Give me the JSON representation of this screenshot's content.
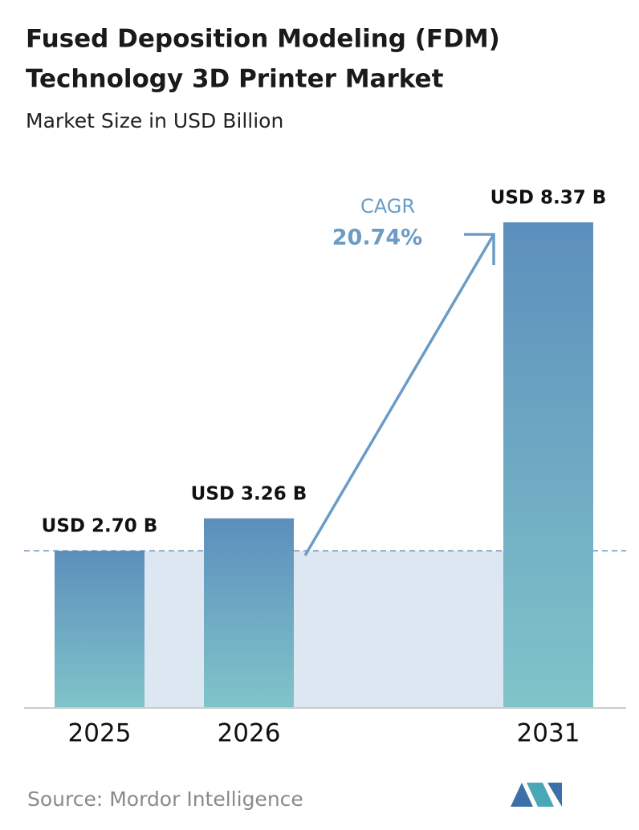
{
  "chart_data": {
    "type": "bar",
    "title": [
      "Fused Deposition Modeling (FDM)",
      "Technology 3D Printer Market"
    ],
    "subtitle": "Market Size in USD Billion",
    "categories": [
      "2025",
      "2026",
      "2031"
    ],
    "values": [
      2.7,
      3.26,
      8.37
    ],
    "value_labels": [
      "USD 2.70 B",
      "USD 3.26 B",
      "USD 8.37 B"
    ],
    "color": [
      "#5c8fbc",
      "#80c4c9"
    ],
    "annotation": {
      "label": "CAGR",
      "value": "20.74%"
    },
    "source": "Source:  Mordor Intelligence"
  }
}
